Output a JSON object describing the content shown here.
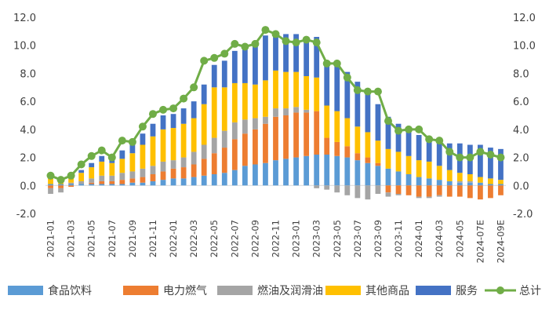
{
  "chart_data": {
    "type": "bar",
    "stacked": true,
    "ylim": [
      -2,
      12
    ],
    "ytick_labels": [
      "12.0",
      "10.0",
      "8.0",
      "6.0",
      "4.0",
      "2.0",
      "0.0",
      "-2.0"
    ],
    "ytick_values": [
      12,
      10,
      8,
      6,
      4,
      2,
      0,
      -2
    ],
    "categories": [
      "2021-01",
      "2021-02",
      "2021-03",
      "2021-04",
      "2021-05",
      "2021-06",
      "2021-07",
      "2021-08",
      "2021-09",
      "2021-10",
      "2021-11",
      "2021-12",
      "2022-01",
      "2022-02",
      "2022-03",
      "2022-04",
      "2022-05",
      "2022-06",
      "2022-07",
      "2022-08",
      "2022-09",
      "2022-10",
      "2022-11",
      "2022-12",
      "2023-01",
      "2023-02",
      "2023-03",
      "2023-04",
      "2023-05",
      "2023-06",
      "2023-07",
      "2023-08",
      "2023-09",
      "2023-10",
      "2023-11",
      "2023-12",
      "2024-01",
      "2024-02",
      "2024-03",
      "2024-04",
      "2024-05",
      "2024-06",
      "2024-07E",
      "2024-08E",
      "2024-09E"
    ],
    "x_tick_labels": [
      "2021-01",
      "2021-03",
      "2021-05",
      "2021-07",
      "2021-09",
      "2021-11",
      "2022-01",
      "2022-03",
      "2022-05",
      "2022-07",
      "2022-09",
      "2022-11",
      "2023-01",
      "2023-03",
      "2023-05",
      "2023-07",
      "2023-09",
      "2023-11",
      "2024-01",
      "2024-03",
      "2024-05",
      "2024-07E",
      "2024-09E"
    ],
    "series": [
      {
        "name": "食品饮料",
        "type": "bar",
        "color": "#5B9BD5",
        "values": [
          0.1,
          0.1,
          0.1,
          0.1,
          0.1,
          0.1,
          0.1,
          0.1,
          0.2,
          0.2,
          0.3,
          0.4,
          0.5,
          0.5,
          0.6,
          0.7,
          0.8,
          0.9,
          1.1,
          1.4,
          1.5,
          1.6,
          1.8,
          1.9,
          2.0,
          2.1,
          2.2,
          2.2,
          2.1,
          2.0,
          1.8,
          1.6,
          1.4,
          1.2,
          1.0,
          0.8,
          0.6,
          0.5,
          0.4,
          0.3,
          0.2,
          0.2,
          0.2,
          0.1,
          0.1
        ]
      },
      {
        "name": "电力燃气",
        "type": "bar",
        "color": "#ED7D31",
        "values": [
          -0.2,
          -0.2,
          -0.1,
          0.0,
          0.1,
          0.2,
          0.2,
          0.3,
          0.3,
          0.4,
          0.5,
          0.6,
          0.7,
          0.8,
          0.9,
          1.2,
          1.5,
          1.8,
          2.2,
          2.3,
          2.5,
          2.8,
          3.1,
          3.1,
          3.2,
          3.1,
          3.1,
          1.2,
          1.0,
          0.8,
          0.5,
          0.4,
          0.2,
          -0.5,
          -0.6,
          -0.7,
          -0.8,
          -0.8,
          -0.7,
          -0.8,
          -0.8,
          -0.9,
          -1.0,
          -0.9,
          -0.7
        ]
      },
      {
        "name": "燃油及润滑油",
        "type": "bar",
        "color": "#A5A5A5",
        "values": [
          -0.4,
          -0.3,
          0.1,
          0.2,
          0.3,
          0.4,
          0.4,
          0.5,
          0.5,
          0.6,
          0.6,
          0.7,
          0.6,
          0.7,
          0.9,
          1.0,
          1.1,
          1.2,
          1.2,
          1.0,
          0.8,
          0.5,
          0.6,
          0.5,
          0.4,
          0.2,
          -0.2,
          -0.3,
          -0.5,
          -0.7,
          -0.9,
          -1.0,
          -0.6,
          -0.3,
          -0.1,
          0.0,
          -0.1,
          -0.1,
          -0.1,
          0.0,
          0.1,
          0.1,
          0.0,
          0.0,
          0.0
        ]
      },
      {
        "name": "其他商品",
        "type": "bar",
        "color": "#FFC000",
        "values": [
          0.4,
          0.3,
          0.3,
          0.6,
          0.8,
          1.0,
          0.9,
          1.0,
          1.3,
          1.7,
          2.1,
          2.3,
          2.3,
          2.4,
          2.4,
          2.9,
          3.6,
          3.1,
          2.8,
          2.6,
          2.4,
          2.6,
          2.7,
          2.6,
          2.5,
          2.4,
          2.4,
          2.3,
          2.2,
          2.0,
          1.9,
          1.8,
          1.6,
          1.4,
          1.4,
          1.3,
          1.2,
          1.2,
          1.0,
          0.8,
          0.6,
          0.5,
          0.4,
          0.4,
          0.3
        ]
      },
      {
        "name": "服务",
        "type": "bar",
        "color": "#4472C4",
        "values": [
          0.4,
          0.2,
          0.2,
          0.2,
          0.3,
          0.4,
          0.5,
          0.6,
          0.7,
          0.8,
          0.9,
          1.0,
          1.0,
          1.1,
          1.2,
          1.4,
          1.6,
          1.9,
          2.3,
          2.6,
          2.9,
          3.2,
          2.8,
          2.7,
          2.7,
          2.8,
          2.9,
          3.1,
          3.2,
          3.3,
          3.2,
          2.9,
          2.6,
          2.3,
          2.0,
          1.9,
          1.8,
          1.6,
          1.6,
          1.9,
          2.1,
          2.1,
          2.3,
          2.2,
          2.2
        ]
      },
      {
        "name": "总计",
        "type": "line",
        "color": "#70AD47",
        "values": [
          0.7,
          0.4,
          0.7,
          1.5,
          2.1,
          2.5,
          2.0,
          3.2,
          3.1,
          4.2,
          5.1,
          5.4,
          5.5,
          6.2,
          7.0,
          8.9,
          9.1,
          9.4,
          10.1,
          9.9,
          10.1,
          11.1,
          10.8,
          10.3,
          10.2,
          10.4,
          10.2,
          8.7,
          8.7,
          7.7,
          6.8,
          6.7,
          6.7,
          4.6,
          3.9,
          4.0,
          4.0,
          3.3,
          3.2,
          2.4,
          2.0,
          2.0,
          2.4,
          2.2,
          2.0
        ]
      }
    ]
  }
}
